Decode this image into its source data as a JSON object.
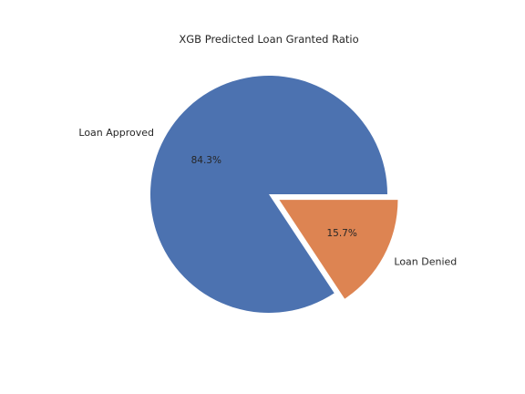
{
  "chart_data": {
    "type": "pie",
    "title": "XGB Predicted Loan Granted Ratio",
    "labels": [
      "Loan Approved",
      "Loan Denied"
    ],
    "values": [
      84.3,
      15.7
    ],
    "percent_labels": [
      "84.3%",
      "15.7%"
    ],
    "explode": [
      0,
      0.1
    ],
    "colors": [
      "#4c72b0",
      "#dd8452"
    ],
    "legend": "none"
  }
}
